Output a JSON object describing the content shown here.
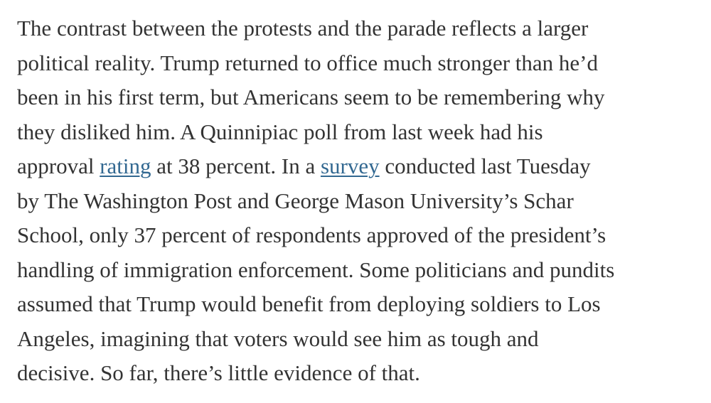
{
  "paragraph": {
    "lines": [
      [
        "The contrast between the protests and the parade reflects a larger"
      ],
      [
        "political reality. Trump returned to office much stronger than he’d"
      ],
      [
        "been in his first term, but Americans seem to be remembering why"
      ],
      [
        "they disliked him. A Quinnipiac poll from last week had his"
      ],
      [
        "approval ",
        {
          "link": "rating"
        },
        " at 38 percent. In a ",
        {
          "link": "survey"
        },
        " conducted last Tuesday"
      ],
      [
        "by The Washington Post and George Mason University’s Schar"
      ],
      [
        "School, only 37 percent of respondents approved of the president’s"
      ],
      [
        "handling of immigration enforcement. Some politicians and pundits"
      ],
      [
        "assumed that Trump would benefit from deploying soldiers to Los"
      ],
      [
        "Angeles, imagining that voters would see him as tough and"
      ],
      [
        "decisive. So far, there’s little evidence of that."
      ]
    ]
  }
}
